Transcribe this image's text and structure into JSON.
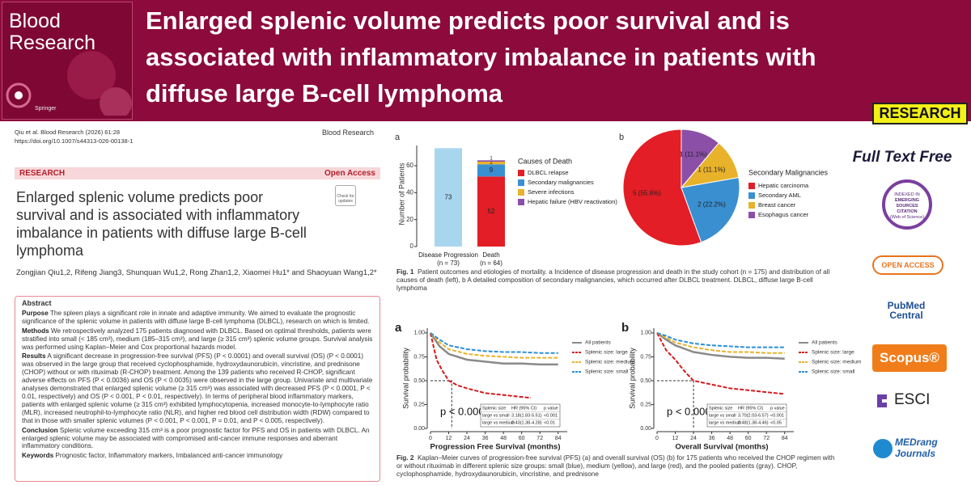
{
  "header": {
    "title_lines": [
      "Enlarged splenic volume predicts poor survival and is",
      "associated with inflammatory imbalance in patients with",
      "diffuse large B-cell lymphoma"
    ],
    "badge": "RESEARCH"
  },
  "cover": {
    "journal": "Blood Research",
    "publisher": "Springer"
  },
  "paper": {
    "citation": "Qiu et al. Blood Research (2026) 61:28",
    "doi": "https://doi.org/10.1007/s44313-026-00138-1",
    "journal": "Blood Research",
    "section": "RESEARCH",
    "access": "Open Access",
    "check": "Check for updates",
    "title_lines": [
      "Enlarged splenic volume predicts poor",
      "survival and is associated with inflammatory",
      "imbalance in patients with diffuse large B-cell",
      "lymphoma"
    ],
    "authors": "Zongjian Qiu1,2, Rifeng Jiang3, Shunquan Wu1,2, Rong Zhan1,2, Xiaomei Hu1* and Shaoyuan Wang1,2*",
    "abstract": {
      "heading": "Abstract",
      "sections": [
        {
          "label": "Purpose",
          "text": "The spleen plays a significant role in innate and adaptive immunity. We aimed to evaluate the prognostic significance of the splenic volume in patients with diffuse large B-cell lymphoma (DLBCL), research on which is limited."
        },
        {
          "label": "Methods",
          "text": "We retrospectively analyzed 175 patients diagnosed with DLBCL. Based on optimal thresholds, patients were stratified into small (< 185 cm³), medium (185–315 cm³), and large (≥ 315 cm³) splenic volume groups. Survival analysis was performed using Kaplan–Meier and Cox proportional hazards model."
        },
        {
          "label": "Results",
          "text": "A significant decrease in progression-free survival (PFS) (P < 0.0001) and overall survival (OS) (P < 0.0001) was observed in the large group that received cyclophosphamide, hydroxydaunorubicin, vincristine, and prednisone (CHOP) without or with rituximab (R-CHOP) treatment. Among the 139 patients who received R-CHOP, significant adverse effects on PFS (P < 0.0036) and OS (P < 0.0035) were observed in the large group. Univariate and multivariate analyses demonstrated that enlarged splenic volume (≥ 315 cm³) was associated with decreased PFS (P < 0.0001, P < 0.01, respectively) and OS (P < 0.001, P < 0.01, respectively). In terms of peripheral blood inflammatory markers, patients with enlarged splenic volume (≥ 315 cm³) exhibited lymphocytopenia, increased monocyte-to-lymphocyte ratio (MLR), increased neutrophil-to-lymphocyte ratio (NLR), and higher red blood cell distribution width (RDW) compared to that in those with smaller splenic volumes (P < 0.001, P < 0.001, P = 0.01, and P < 0.005, respectively)."
        },
        {
          "label": "Conclusion",
          "text": "Splenic volume exceeding 315 cm³ is a poor prognostic factor for PFS and OS in patients with DLBCL. An enlarged splenic volume may be associated with compromised anti-cancer immune responses and aberrant inflammatory conditions."
        },
        {
          "label": "Keywords",
          "text": "Prognostic factor, Inflammatory markers, Imbalanced anti-cancer immunology"
        }
      ]
    }
  },
  "figure1": {
    "a": {
      "panel": "a",
      "ylabel": "Number of Patients",
      "ylim": [
        0,
        75
      ],
      "yticks": [
        0,
        20,
        40,
        60
      ],
      "legend_title": "Causes of Death",
      "bars": [
        {
          "category": "Disease Progression",
          "note": "(n = 73)",
          "segments": [
            {
              "value": 73,
              "color": "#a9d6ef"
            }
          ]
        },
        {
          "category": "Death",
          "note": "(n = 64)",
          "segments": [
            {
              "name": "DLBCL relapse",
              "value": 52,
              "color": "#e31e26"
            },
            {
              "name": "Secondary malignancies",
              "value": 9,
              "color": "#3a8fd0"
            },
            {
              "name": "Severe infections",
              "value": 2,
              "color": "#e8b22a"
            },
            {
              "name": "Hepatic failure (HBV reactivation)",
              "value": 1,
              "color": "#8b4fa8"
            }
          ]
        }
      ]
    },
    "b": {
      "panel": "b",
      "legend_title": "Secondary Malignancies",
      "slices": [
        {
          "name": "Hepatic carcinoma",
          "value": 5,
          "label": "5 (55.6%)",
          "color": "#e31e26"
        },
        {
          "name": "Secondary AML",
          "value": 2,
          "label": "2 (22.2%)",
          "color": "#3a8fd0"
        },
        {
          "name": "Breast cancer",
          "value": 1,
          "label": "1 (11.1%)",
          "color": "#e8b22a"
        },
        {
          "name": "Esophagus cancer",
          "value": 1,
          "label": "1 (11.1%)",
          "color": "#8b4fa8"
        }
      ]
    },
    "caption_label": "Fig. 1",
    "caption": "Patient outcomes and etiologies of mortality. a Incidence of disease progression and death in the study cohort (n = 175) and distribution of all causes of death (left), b A detailed composition of secondary malignancies, which occurred after DLBCL treatment. DLBCL, diffuse large B-cell lymphoma"
  },
  "figure2": {
    "panels": [
      {
        "panel": "a",
        "xlabel": "Progression Free Survival (months)",
        "ylabel": "Survival probability",
        "pvalue": "p < 0.0001",
        "median_x": 14,
        "xlim": [
          0,
          90
        ],
        "xticks": [
          0,
          12,
          24,
          36,
          48,
          60,
          72,
          84
        ],
        "ylim": [
          0,
          1.05
        ],
        "yticks": [
          {
            "value": 0,
            "label": "0.00"
          },
          {
            "value": 0.25,
            "label": "0.25"
          },
          {
            "value": 0.5,
            "label": "0.50"
          },
          {
            "value": 0.75,
            "label": "0.75"
          },
          {
            "value": 1,
            "label": "1.00"
          }
        ],
        "series": [
          {
            "name": "All patients",
            "color": "#8a8a8a",
            "x": [
              0,
              6,
              12,
              24,
              36,
              48,
              60,
              72,
              84
            ],
            "y": [
              1,
              0.86,
              0.78,
              0.72,
              0.7,
              0.68,
              0.68,
              0.67,
              0.67
            ]
          },
          {
            "name": "Splenic size: large",
            "color": "#d7191c",
            "x": [
              0,
              4,
              8,
              12,
              18,
              24,
              36,
              48,
              60,
              66
            ],
            "y": [
              1,
              0.72,
              0.6,
              0.5,
              0.45,
              0.42,
              0.37,
              0.35,
              0.33,
              0.32
            ]
          },
          {
            "name": "Splenic size: medium",
            "color": "#e8b22a",
            "x": [
              0,
              6,
              12,
              24,
              36,
              48,
              60,
              72,
              84
            ],
            "y": [
              1,
              0.9,
              0.83,
              0.78,
              0.76,
              0.75,
              0.74,
              0.74,
              0.74
            ]
          },
          {
            "name": "Splenic size: small",
            "color": "#2b8fd6",
            "x": [
              0,
              6,
              12,
              24,
              36,
              48,
              60,
              72,
              84
            ],
            "y": [
              1,
              0.93,
              0.87,
              0.83,
              0.81,
              0.8,
              0.8,
              0.79,
              0.79
            ]
          }
        ],
        "table": {
          "header": [
            "Splenic size",
            "HR (95% CI)",
            "p value"
          ],
          "rows": [
            [
              "large vs small",
              "3.18(1.83-5.51)",
              "<0.001"
            ],
            [
              "large vs medium",
              "2.43(1.38-4.28)",
              "<0.01"
            ]
          ]
        }
      },
      {
        "panel": "b",
        "xlabel": "Overall Survival (months)",
        "ylabel": "Survival probability",
        "pvalue": "p < 0.0001",
        "median_x": 24,
        "xlim": [
          0,
          90
        ],
        "xticks": [
          0,
          12,
          24,
          36,
          48,
          60,
          72,
          84
        ],
        "ylim": [
          0,
          1.05
        ],
        "yticks": [
          {
            "value": 0,
            "label": "0.00"
          },
          {
            "value": 0.25,
            "label": "0.25"
          },
          {
            "value": 0.5,
            "label": "0.50"
          },
          {
            "value": 0.75,
            "label": "0.75"
          },
          {
            "value": 1,
            "label": "1.00"
          }
        ],
        "series": [
          {
            "name": "All patients",
            "color": "#8a8a8a",
            "x": [
              0,
              6,
              12,
              24,
              36,
              48,
              60,
              72,
              84
            ],
            "y": [
              1,
              0.93,
              0.87,
              0.8,
              0.77,
              0.75,
              0.74,
              0.74,
              0.73
            ]
          },
          {
            "name": "Splenic size: large",
            "color": "#d7191c",
            "x": [
              0,
              6,
              12,
              18,
              24,
              36,
              48,
              60,
              72,
              84
            ],
            "y": [
              1,
              0.82,
              0.72,
              0.6,
              0.5,
              0.46,
              0.42,
              0.4,
              0.38,
              0.36
            ]
          },
          {
            "name": "Splenic size: medium",
            "color": "#e8b22a",
            "x": [
              0,
              6,
              12,
              24,
              36,
              48,
              60,
              72,
              84
            ],
            "y": [
              1,
              0.95,
              0.9,
              0.85,
              0.82,
              0.8,
              0.8,
              0.79,
              0.79
            ]
          },
          {
            "name": "Splenic size: small",
            "color": "#2b8fd6",
            "x": [
              0,
              6,
              12,
              24,
              36,
              48,
              60,
              72,
              84
            ],
            "y": [
              1,
              0.97,
              0.93,
              0.89,
              0.87,
              0.86,
              0.85,
              0.85,
              0.85
            ]
          }
        ],
        "table": {
          "header": [
            "Splenic size",
            "HR (95% CI)",
            "p value"
          ],
          "rows": [
            [
              "large vs small",
              "3.70(2.03-6.57)",
              "<0.001"
            ],
            [
              "large vs medium",
              "2.48(1.38-4.46)",
              "<0.05"
            ]
          ]
        }
      }
    ],
    "caption_label": "Fig. 2",
    "caption": "Kaplan–Meier curves of progression-free survival (PFS) (a) and overall survival (OS) (b) for 175 patients who received the CHOP regimen with or without rituximab in different splenic size groups: small (blue), medium (yellow), and large (red), and the pooled patients (gray). CHOP, cyclophosphamide, hydroxydaunorubicin, vincristine, and prednisone"
  },
  "sidebar": {
    "free": "Full Text Free",
    "esci_badge": [
      "INDEXED IN",
      "EMERGING",
      "SOURCES",
      "CITATION",
      "(Web of Science)"
    ],
    "open_access": "OPEN ACCESS",
    "pubmed": [
      "PubMed",
      "Central"
    ],
    "scopus": "Scopus®",
    "esci": "ESCI",
    "medrang": [
      "MEDrang",
      "Journals"
    ]
  }
}
